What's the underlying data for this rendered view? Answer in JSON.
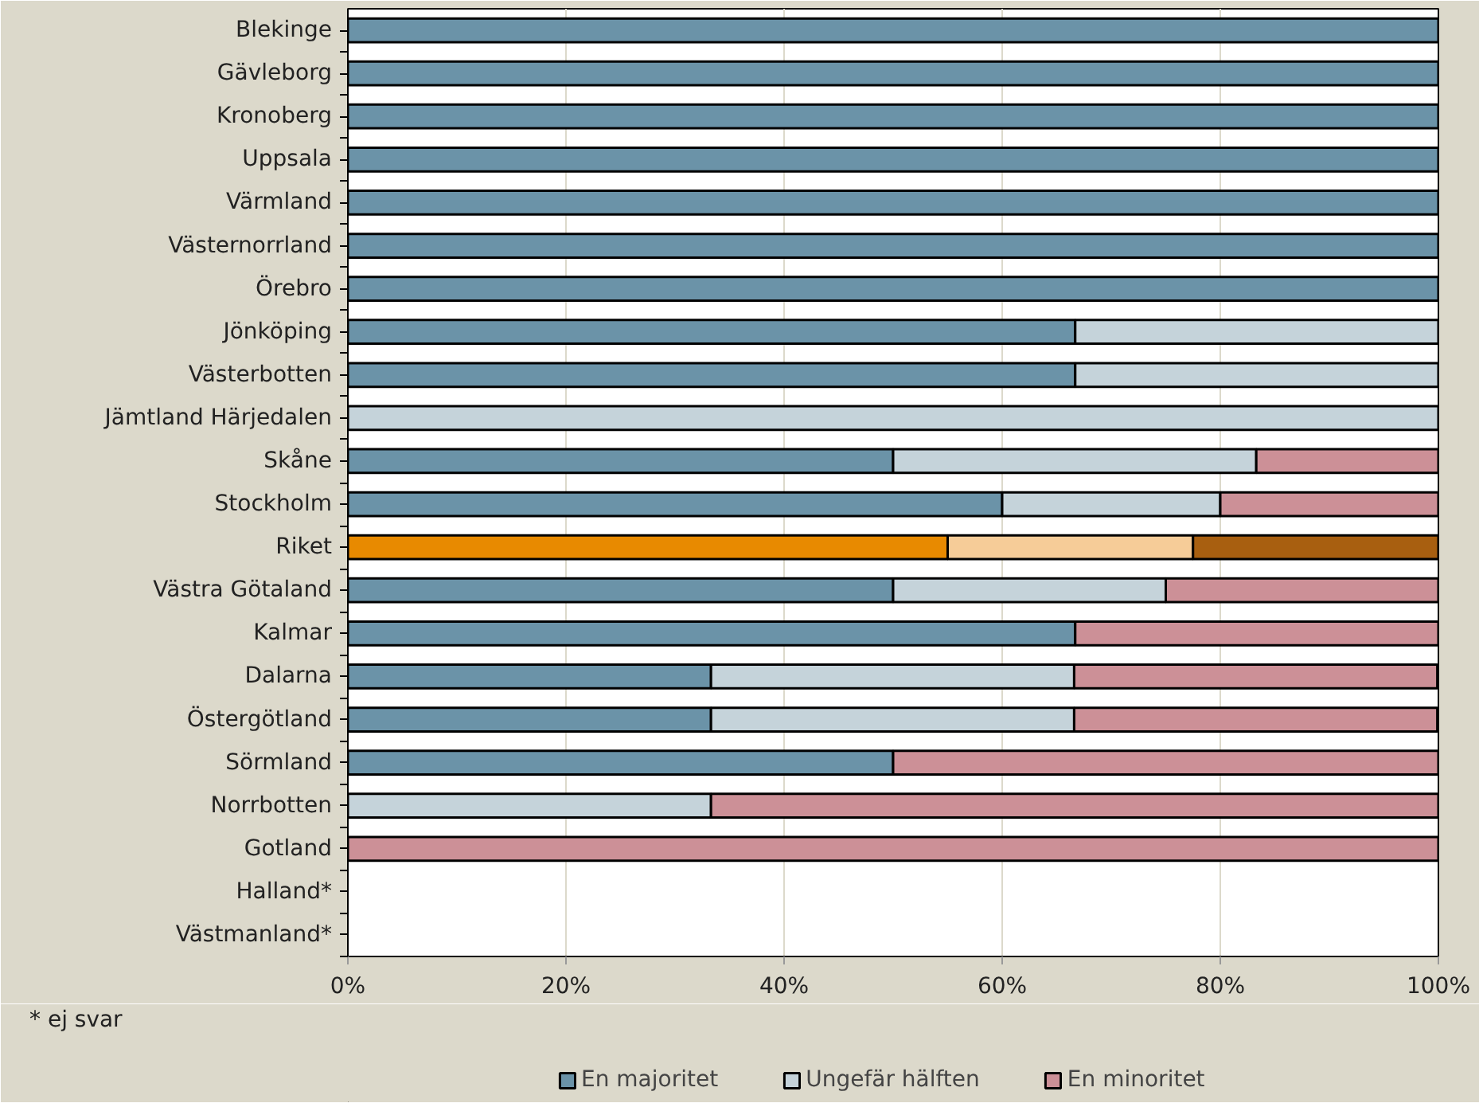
{
  "chart_data": {
    "type": "bar",
    "orientation": "horizontal",
    "stacked": true,
    "categories": [
      "Blekinge",
      "Gävleborg",
      "Kronoberg",
      "Uppsala",
      "Värmland",
      "Västernorrland",
      "Örebro",
      "Jönköping",
      "Västerbotten",
      "Jämtland Härjedalen",
      "Skåne",
      "Stockholm",
      "Riket",
      "Västra Götaland",
      "Kalmar",
      "Dalarna",
      "Östergötland",
      "Sörmland",
      "Norrbotten",
      "Gotland",
      "Halland*",
      "Västmanland*"
    ],
    "series": [
      {
        "name": "En majoritet",
        "color": "#6b93a8",
        "colors": [
          "#6b93a8",
          "#6b93a8",
          "#6b93a8",
          "#6b93a8",
          "#6b93a8",
          "#6b93a8",
          "#6b93a8",
          "#6b93a8",
          "#6b93a8",
          "#6b93a8",
          "#6b93a8",
          "#6b93a8",
          "#e88a00",
          "#6b93a8",
          "#6b93a8",
          "#6b93a8",
          "#6b93a8",
          "#6b93a8",
          "#6b93a8",
          "#6b93a8",
          "#6b93a8",
          "#6b93a8"
        ],
        "values": [
          100,
          100,
          100,
          100,
          100,
          100,
          100,
          66.7,
          66.7,
          0,
          50,
          60,
          55,
          50,
          66.7,
          33.3,
          33.3,
          50,
          0,
          0,
          null,
          null
        ]
      },
      {
        "name": "Ungefär hälften",
        "color": "#c5d3da",
        "colors": [
          "#c5d3da",
          "#c5d3da",
          "#c5d3da",
          "#c5d3da",
          "#c5d3da",
          "#c5d3da",
          "#c5d3da",
          "#c5d3da",
          "#c5d3da",
          "#c5d3da",
          "#c5d3da",
          "#c5d3da",
          "#f6cc98",
          "#c5d3da",
          "#c5d3da",
          "#c5d3da",
          "#c5d3da",
          "#c5d3da",
          "#c5d3da",
          "#c5d3da",
          "#c5d3da",
          "#c5d3da"
        ],
        "values": [
          0,
          0,
          0,
          0,
          0,
          0,
          0,
          33.3,
          33.3,
          100,
          33.3,
          20,
          22.5,
          25,
          0,
          33.3,
          33.3,
          0,
          33.3,
          0,
          null,
          null
        ]
      },
      {
        "name": "En minoritet",
        "color": "#cc9097",
        "colors": [
          "#cc9097",
          "#cc9097",
          "#cc9097",
          "#cc9097",
          "#cc9097",
          "#cc9097",
          "#cc9097",
          "#cc9097",
          "#cc9097",
          "#cc9097",
          "#cc9097",
          "#cc9097",
          "#a85f10",
          "#cc9097",
          "#cc9097",
          "#cc9097",
          "#cc9097",
          "#cc9097",
          "#cc9097",
          "#cc9097",
          "#cc9097",
          "#cc9097"
        ],
        "values": [
          0,
          0,
          0,
          0,
          0,
          0,
          0,
          0,
          0,
          0,
          16.7,
          20,
          22.5,
          25,
          33.3,
          33.3,
          33.3,
          50,
          66.7,
          100,
          null,
          null
        ]
      }
    ],
    "xlim": [
      0,
      100
    ],
    "xticks": [
      {
        "value": 0,
        "label": "0%"
      },
      {
        "value": 20,
        "label": "20%"
      },
      {
        "value": 40,
        "label": "40%"
      },
      {
        "value": 60,
        "label": "60%"
      },
      {
        "value": 80,
        "label": "80%"
      },
      {
        "value": 100,
        "label": "100%"
      }
    ],
    "grid": "x",
    "legend": "bottom",
    "annotations": [
      "* ej svar"
    ]
  }
}
